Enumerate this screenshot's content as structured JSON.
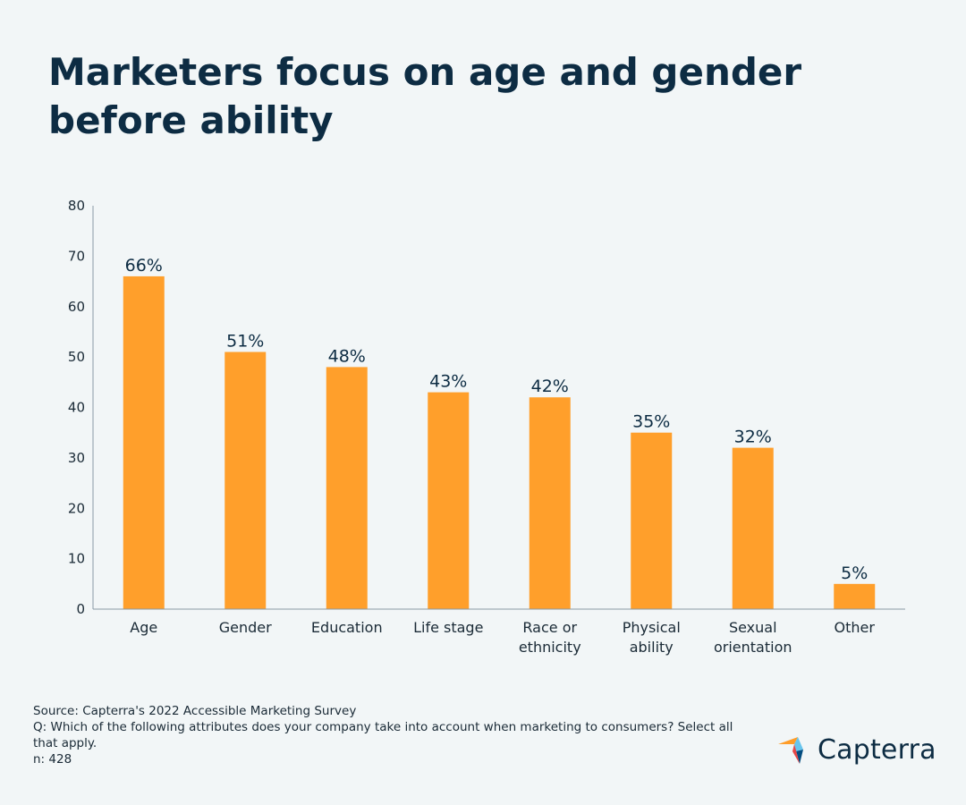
{
  "title": "Marketers focus on age and gender before ability",
  "chart_data": {
    "type": "bar",
    "categories": [
      "Age",
      "Gender",
      "Education",
      "Life stage",
      "Race or ethnicity",
      "Physical ability",
      "Sexual orientation",
      "Other"
    ],
    "category_lines": [
      [
        "Age"
      ],
      [
        "Gender"
      ],
      [
        "Education"
      ],
      [
        "Life stage"
      ],
      [
        "Race or",
        "ethnicity"
      ],
      [
        "Physical",
        "ability"
      ],
      [
        "Sexual",
        "orientation"
      ],
      [
        "Other"
      ]
    ],
    "values": [
      66,
      51,
      48,
      43,
      42,
      35,
      32,
      5
    ],
    "data_labels": [
      "66%",
      "51%",
      "48%",
      "43%",
      "42%",
      "35%",
      "32%",
      "5%"
    ],
    "ylim": [
      0,
      80
    ],
    "yticks": [
      0,
      10,
      20,
      30,
      40,
      50,
      60,
      70,
      80
    ],
    "bar_color": "#ff9f2b",
    "axis_color": "#8a9aa6",
    "grid": false,
    "legend": "none"
  },
  "footer": {
    "source": "Source: Capterra's 2022 Accessible Marketing Survey",
    "question": "Q: Which of the following attributes does your company take into account when marketing to consumers? Select all that apply.",
    "n": "n: 428"
  },
  "brand": {
    "name": "Capterra",
    "logo_icon": "capterra-arrow-logo",
    "colors": [
      "#ff9d28",
      "#68c5ed",
      "#044d80",
      "#e54747"
    ]
  }
}
